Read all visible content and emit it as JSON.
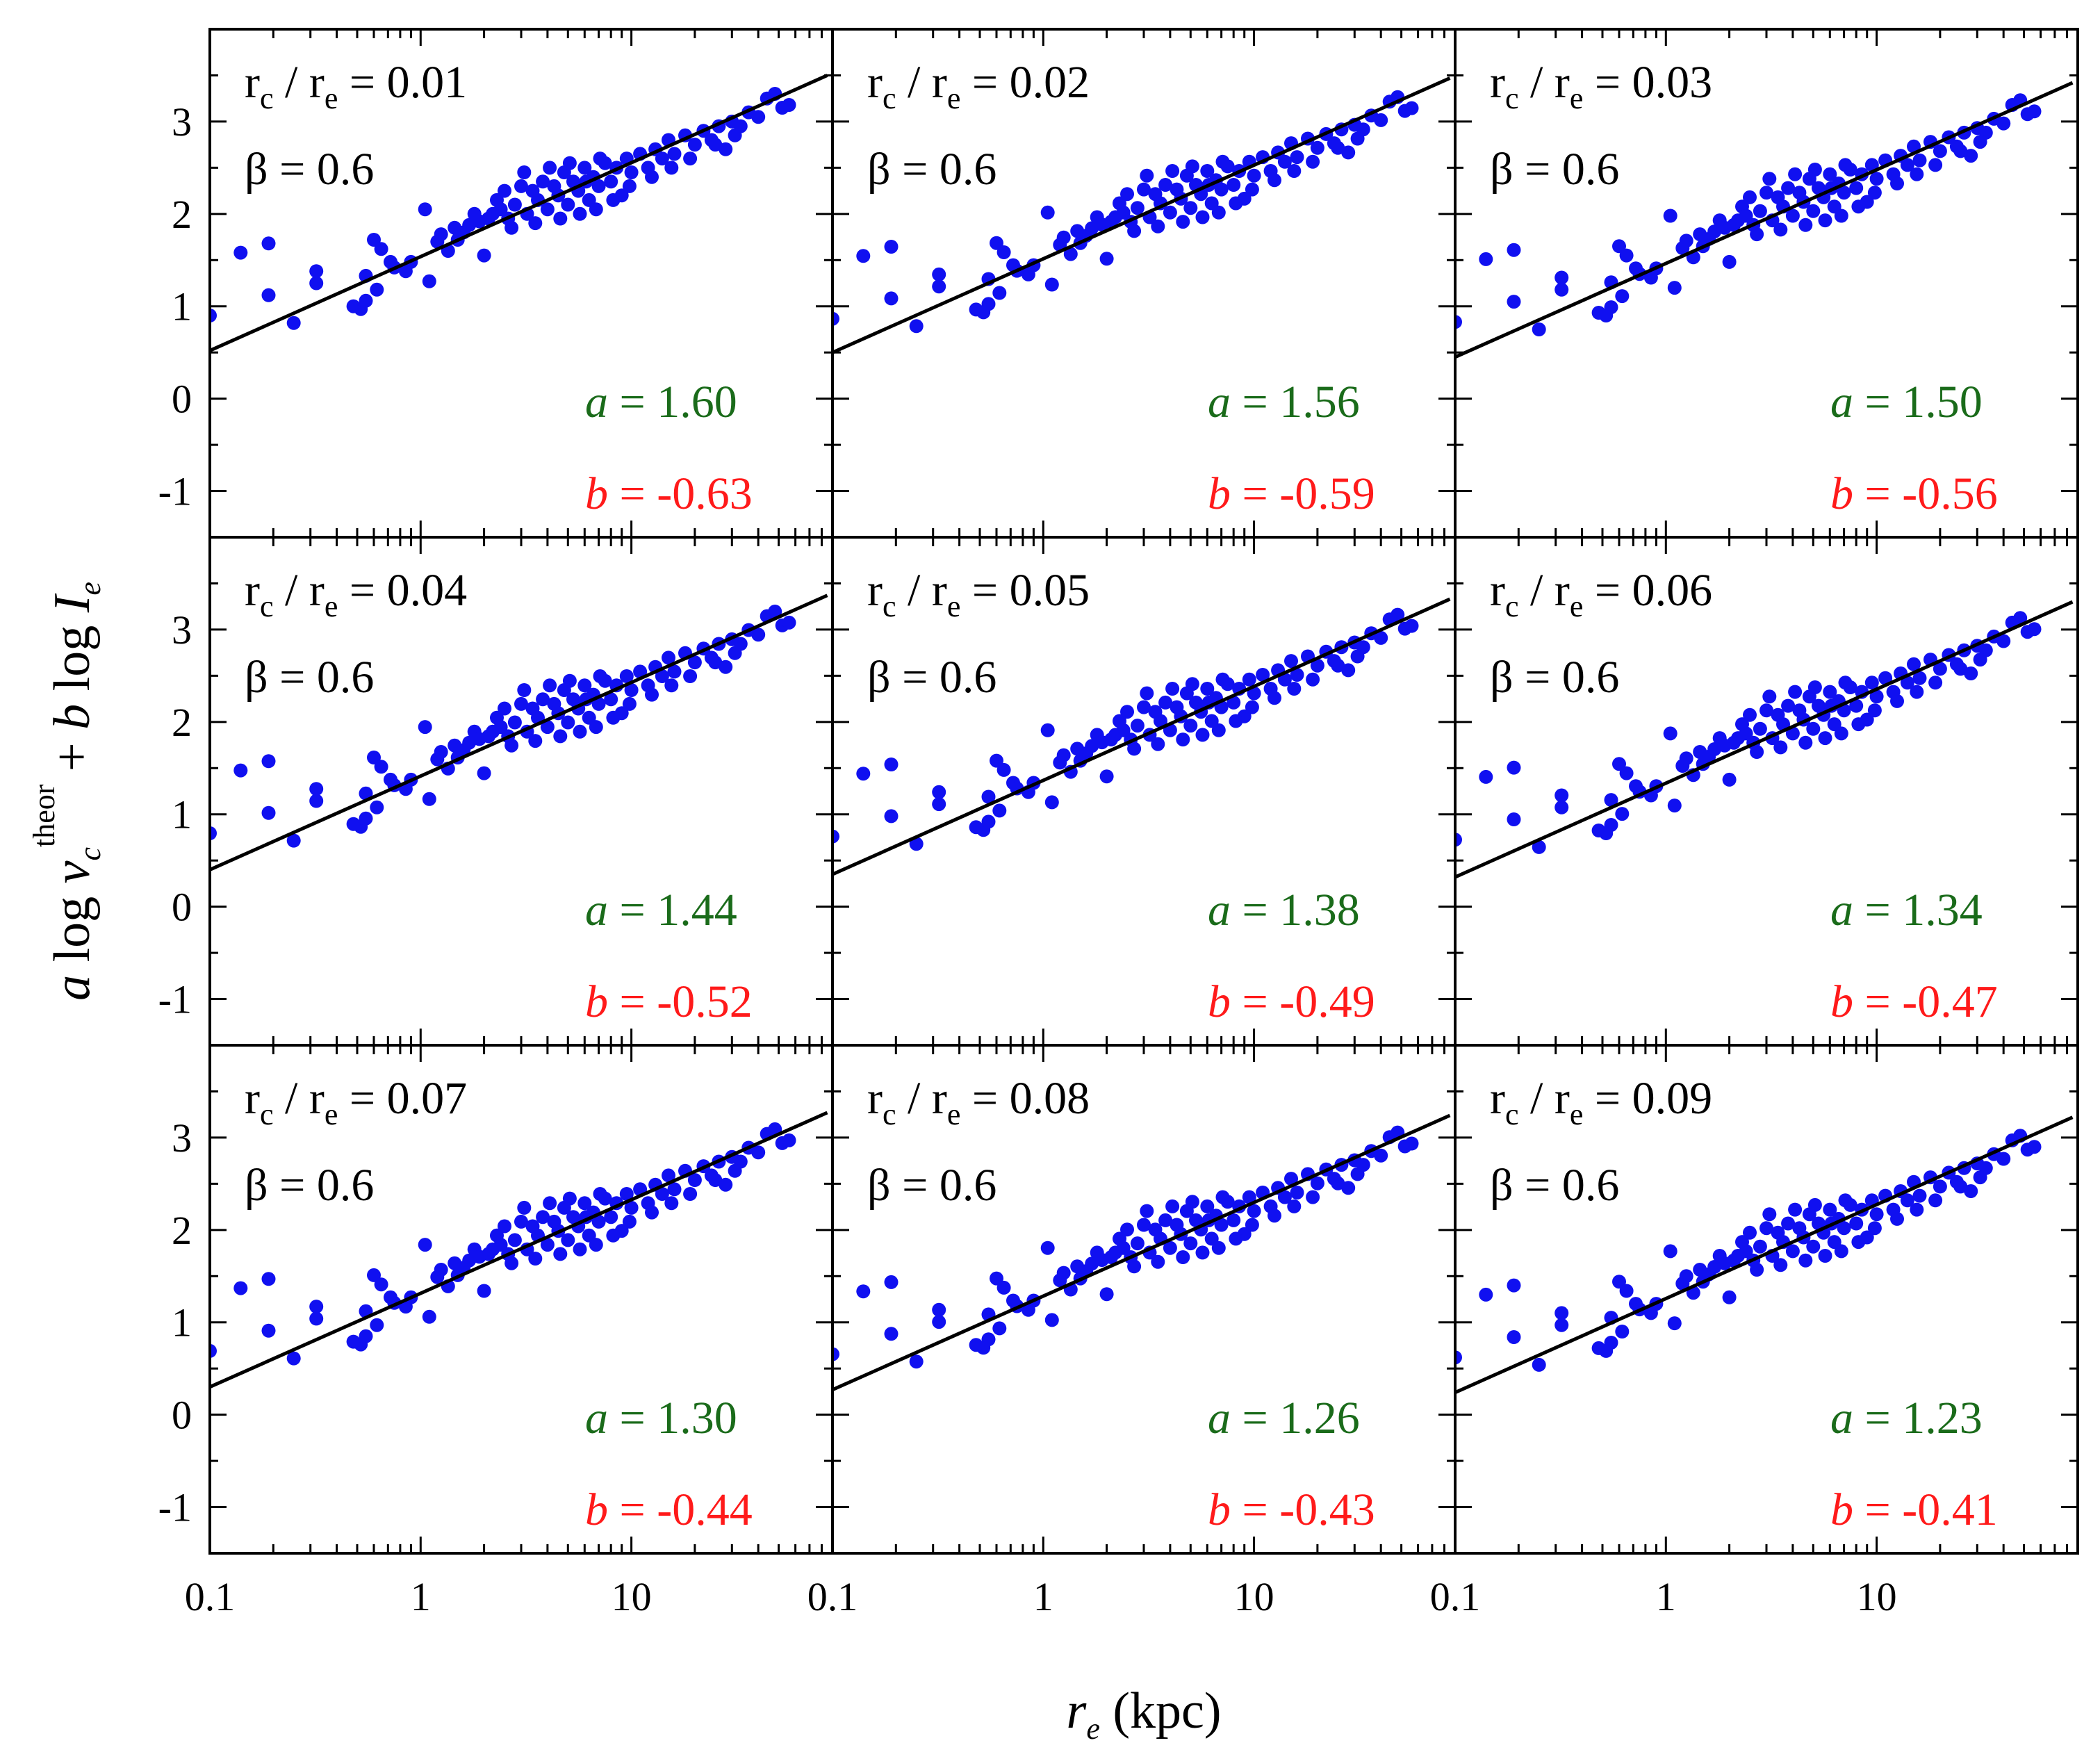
{
  "chart_data": {
    "type": "scatter",
    "layout": "3x3 grid of panels",
    "xscale": "log",
    "xlim": [
      0.1,
      90
    ],
    "ylim": [
      -1.5,
      4
    ],
    "xticks": [
      {
        "value": 0.1,
        "label": "0.1"
      },
      {
        "value": 1,
        "label": "1"
      },
      {
        "value": 10,
        "label": "10"
      }
    ],
    "yticks": [
      {
        "value": -1,
        "label": "-1"
      },
      {
        "value": 0,
        "label": "0"
      },
      {
        "value": 1,
        "label": "1"
      },
      {
        "value": 2,
        "label": "2"
      },
      {
        "value": 3,
        "label": "3"
      }
    ],
    "xlabel": {
      "main": "r",
      "sub": "e",
      "unit": " (kpc)"
    },
    "ylabel": {
      "a": "a",
      "log1": " log ",
      "v": "v",
      "vsub": "c",
      "sup": "theor",
      "plus": " + ",
      "b": "b",
      "log2": " log ",
      "I": "I",
      "Isub": "e"
    },
    "labels": {
      "rc": "r",
      "rc_sub": "c",
      "slash": " / ",
      "re": "r",
      "re_sub": "e",
      "eq": " = ",
      "beta": "β = ",
      "a_sym": "a",
      "b_sym": "b"
    },
    "panels": [
      {
        "ratio": "0.01",
        "beta": "0.6",
        "a": "1.60",
        "b": "-0.63",
        "fit": [
          [
            0.1,
            0.52
          ],
          [
            85,
            3.5
          ]
        ]
      },
      {
        "ratio": "0.02",
        "beta": "0.6",
        "a": "1.56",
        "b": "-0.59",
        "fit": [
          [
            0.1,
            0.5
          ],
          [
            85,
            3.47
          ]
        ]
      },
      {
        "ratio": "0.03",
        "beta": "0.6",
        "a": "1.50",
        "b": "-0.56",
        "fit": [
          [
            0.1,
            0.45
          ],
          [
            85,
            3.42
          ]
        ]
      },
      {
        "ratio": "0.04",
        "beta": "0.6",
        "a": "1.44",
        "b": "-0.52",
        "fit": [
          [
            0.1,
            0.4
          ],
          [
            85,
            3.37
          ]
        ]
      },
      {
        "ratio": "0.05",
        "beta": "0.6",
        "a": "1.38",
        "b": "-0.49",
        "fit": [
          [
            0.1,
            0.35
          ],
          [
            85,
            3.33
          ]
        ]
      },
      {
        "ratio": "0.06",
        "beta": "0.6",
        "a": "1.34",
        "b": "-0.47",
        "fit": [
          [
            0.1,
            0.32
          ],
          [
            85,
            3.3
          ]
        ]
      },
      {
        "ratio": "0.07",
        "beta": "0.6",
        "a": "1.30",
        "b": "-0.44",
        "fit": [
          [
            0.1,
            0.3
          ],
          [
            85,
            3.27
          ]
        ]
      },
      {
        "ratio": "0.08",
        "beta": "0.6",
        "a": "1.26",
        "b": "-0.43",
        "fit": [
          [
            0.1,
            0.27
          ],
          [
            85,
            3.24
          ]
        ]
      },
      {
        "ratio": "0.09",
        "beta": "0.6",
        "a": "1.23",
        "b": "-0.41",
        "fit": [
          [
            0.1,
            0.24
          ],
          [
            85,
            3.22
          ]
        ]
      }
    ],
    "points": {
      "description": "approximate scatter (same galaxy sample in every panel, shifted slightly downward per panel)",
      "base": [
        [
          0.1,
          0.9
        ],
        [
          0.14,
          1.58
        ],
        [
          0.19,
          1.68
        ],
        [
          0.19,
          1.12
        ],
        [
          0.25,
          0.82
        ],
        [
          0.32,
          1.38
        ],
        [
          0.32,
          1.25
        ],
        [
          0.52,
          0.97
        ],
        [
          0.55,
          1.06
        ],
        [
          0.55,
          1.33
        ],
        [
          0.6,
          1.72
        ],
        [
          0.65,
          1.62
        ],
        [
          0.72,
          1.48
        ],
        [
          0.75,
          1.42
        ],
        [
          0.9,
          1.48
        ],
        [
          1.05,
          2.05
        ],
        [
          1.1,
          1.27
        ],
        [
          1.2,
          1.7
        ],
        [
          1.25,
          1.78
        ],
        [
          1.45,
          1.85
        ],
        [
          1.5,
          1.72
        ],
        [
          1.7,
          1.88
        ],
        [
          1.8,
          2.0
        ],
        [
          1.9,
          1.92
        ],
        [
          2.0,
          1.55
        ],
        [
          2.2,
          2.0
        ],
        [
          2.3,
          2.15
        ],
        [
          2.5,
          2.25
        ],
        [
          2.6,
          1.95
        ],
        [
          2.8,
          2.1
        ],
        [
          3.0,
          2.3
        ],
        [
          3.2,
          2.0
        ],
        [
          3.4,
          2.25
        ],
        [
          3.6,
          2.15
        ],
        [
          3.8,
          2.35
        ],
        [
          4.0,
          2.05
        ],
        [
          4.3,
          2.3
        ],
        [
          4.5,
          2.2
        ],
        [
          4.8,
          2.45
        ],
        [
          5.0,
          2.1
        ],
        [
          5.3,
          2.35
        ],
        [
          5.6,
          2.25
        ],
        [
          6.0,
          2.5
        ],
        [
          6.3,
          2.15
        ],
        [
          6.6,
          2.4
        ],
        [
          7.0,
          2.3
        ],
        [
          7.5,
          2.55
        ],
        [
          8.0,
          2.35
        ],
        [
          8.5,
          2.5
        ],
        [
          9.0,
          2.2
        ],
        [
          9.5,
          2.6
        ],
        [
          10.0,
          2.45
        ],
        [
          11.0,
          2.65
        ],
        [
          12.0,
          2.5
        ],
        [
          13.0,
          2.7
        ],
        [
          14.0,
          2.6
        ],
        [
          15.0,
          2.8
        ],
        [
          16.0,
          2.65
        ],
        [
          18.0,
          2.85
        ],
        [
          20.0,
          2.75
        ],
        [
          22.0,
          2.9
        ],
        [
          24.0,
          2.8
        ],
        [
          26.0,
          2.95
        ],
        [
          28.0,
          2.7
        ],
        [
          30.0,
          3.0
        ],
        [
          33.0,
          2.95
        ],
        [
          36.0,
          3.1
        ],
        [
          40.0,
          3.05
        ],
        [
          44.0,
          3.25
        ],
        [
          48.0,
          3.3
        ],
        [
          52.0,
          3.15
        ],
        [
          56.0,
          3.18
        ],
        [
          3.1,
          2.45
        ],
        [
          4.1,
          2.5
        ],
        [
          5.1,
          2.55
        ],
        [
          6.1,
          2.35
        ],
        [
          7.1,
          2.6
        ],
        [
          2.7,
          1.85
        ],
        [
          3.5,
          1.9
        ],
        [
          4.6,
          1.95
        ],
        [
          5.7,
          2.0
        ],
        [
          6.8,
          2.05
        ],
        [
          8.2,
          2.15
        ],
        [
          9.8,
          2.3
        ],
        [
          12.5,
          2.4
        ],
        [
          15.5,
          2.5
        ],
        [
          19.0,
          2.6
        ],
        [
          25.0,
          2.75
        ],
        [
          31.0,
          2.85
        ],
        [
          1.35,
          1.6
        ],
        [
          1.6,
          1.8
        ],
        [
          2.1,
          1.95
        ],
        [
          2.4,
          2.05
        ],
        [
          0.85,
          1.38
        ],
        [
          0.62,
          1.18
        ],
        [
          0.48,
          1.0
        ]
      ]
    }
  }
}
